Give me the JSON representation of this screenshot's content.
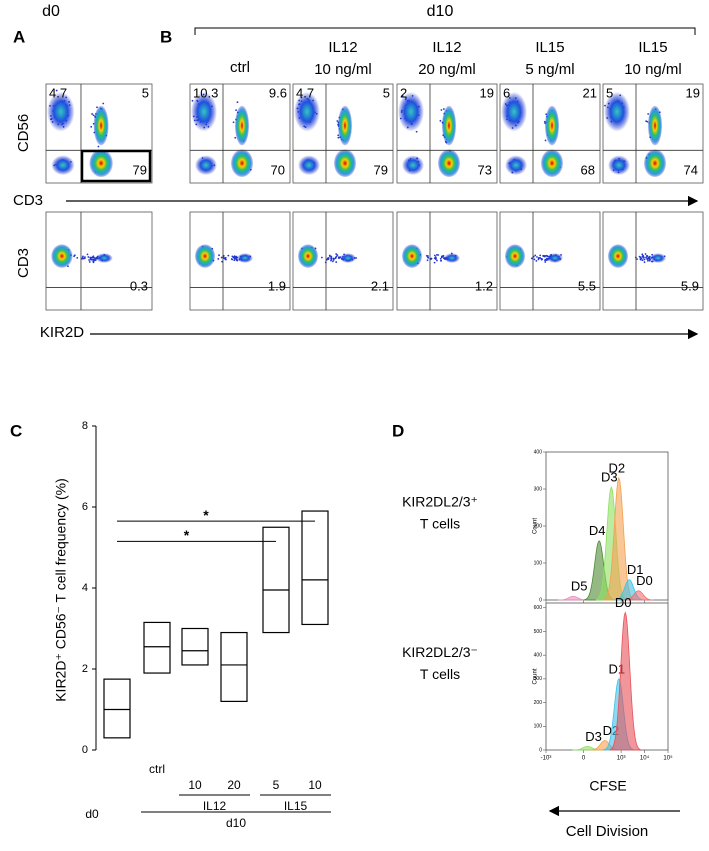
{
  "figure": {
    "d0": "d0",
    "d10": "d10",
    "panel_labels": [
      "A",
      "B",
      "C",
      "D"
    ],
    "cell_division": "Cell Division",
    "flow": {
      "top_ylabel": "CD56",
      "top_xlabel": "CD3",
      "bottom_ylabel": "CD3",
      "bottom_xlabel": "KIR2D",
      "columns": [
        [
          "ctrl"
        ],
        [
          "IL12",
          "10 ng/ml"
        ],
        [
          "IL12",
          "20 ng/ml"
        ],
        [
          "IL15",
          "5 ng/ml"
        ],
        [
          "IL15",
          "10 ng/ml"
        ]
      ],
      "quadrant_top": [
        [
          4.7,
          5,
          79
        ],
        [
          10.3,
          9.6,
          70
        ],
        [
          4.7,
          5,
          79
        ],
        [
          2,
          19,
          73
        ],
        [
          6,
          21,
          68
        ],
        [
          5,
          19,
          74
        ]
      ],
      "quadrant_bottom": [
        0.3,
        1.9,
        2.1,
        1.2,
        5.5,
        5.9
      ]
    }
  },
  "chart_data": [
    {
      "type": "box",
      "ylabel": "KIR2D⁺ CD56⁻ T cell frequency (%)",
      "categories": [
        "d0",
        "ctrl",
        "10",
        "20",
        "5",
        "10"
      ],
      "low": [
        0.3,
        1.9,
        2.1,
        1.2,
        2.9,
        3.1
      ],
      "median": [
        1.0,
        2.55,
        2.45,
        2.1,
        3.95,
        4.2
      ],
      "high": [
        1.75,
        3.15,
        3.0,
        2.9,
        5.5,
        5.9
      ],
      "groups": [
        {
          "label": "IL12",
          "from": 2,
          "to": 3
        },
        {
          "label": "IL15",
          "from": 4,
          "to": 5
        },
        {
          "label": "d10",
          "from": 1,
          "to": 5
        }
      ],
      "significance": [
        {
          "label": "*",
          "from": 0,
          "to": 5,
          "y": 5.65
        },
        {
          "label": "*",
          "from": 0,
          "to": 4,
          "y": 5.15
        }
      ],
      "ylim": [
        0,
        8
      ],
      "yticks": [
        0,
        2,
        4,
        6,
        8
      ]
    },
    {
      "type": "density",
      "label": [
        "KIR2DL2/3⁺",
        "T cells"
      ],
      "ylabel": "Count",
      "xlim": [
        -1000,
        100000
      ],
      "xticks": [
        -1000,
        0,
        1000,
        10000,
        100000
      ],
      "show_xtick_labels": false,
      "ylim": [
        0,
        400
      ],
      "yticks": [
        0,
        100,
        200,
        300,
        400
      ],
      "series": [
        {
          "name": "D5",
          "color": "#e890bd",
          "peak_x": -60,
          "peak": 10
        },
        {
          "name": "D4",
          "color": "#4f8a34",
          "peak_x": 110,
          "peak": 160
        },
        {
          "name": "D3",
          "color": "#8fe060",
          "peak_x": 380,
          "peak": 305
        },
        {
          "name": "D2",
          "color": "#f5a050",
          "peak_x": 800,
          "peak": 330
        },
        {
          "name": "D1",
          "color": "#40c0e8",
          "peak_x": 2200,
          "peak": 55
        },
        {
          "name": "D0",
          "color": "#f07070",
          "peak_x": 5500,
          "peak": 25
        }
      ]
    },
    {
      "type": "density",
      "label": [
        "KIR2DL2/3⁻",
        "T cells"
      ],
      "ylabel": "Count",
      "xlabel": "CFSE",
      "xlim": [
        -1000,
        100000
      ],
      "xticks": [
        {
          "value": -1000,
          "label": "-10³"
        },
        0,
        {
          "value": 1000,
          "label": "10³"
        },
        {
          "value": 10000,
          "label": "10⁴"
        },
        {
          "value": 100000,
          "label": "10⁵"
        }
      ],
      "show_xtick_labels": true,
      "ylim": [
        0,
        620
      ],
      "yticks": [
        0,
        100,
        200,
        300,
        400,
        500,
        600
      ],
      "series": [
        {
          "name": "D3",
          "color": "#8fe060",
          "peak_x": 20,
          "peak": 15
        },
        {
          "name": "D2",
          "color": "#f5a050",
          "peak_x": 200,
          "peak": 40
        },
        {
          "name": "D1",
          "color": "#40c0e8",
          "peak_x": 800,
          "peak": 300
        },
        {
          "name": "D0",
          "color": "#e85058",
          "peak_x": 1500,
          "peak": 580
        }
      ]
    }
  ]
}
